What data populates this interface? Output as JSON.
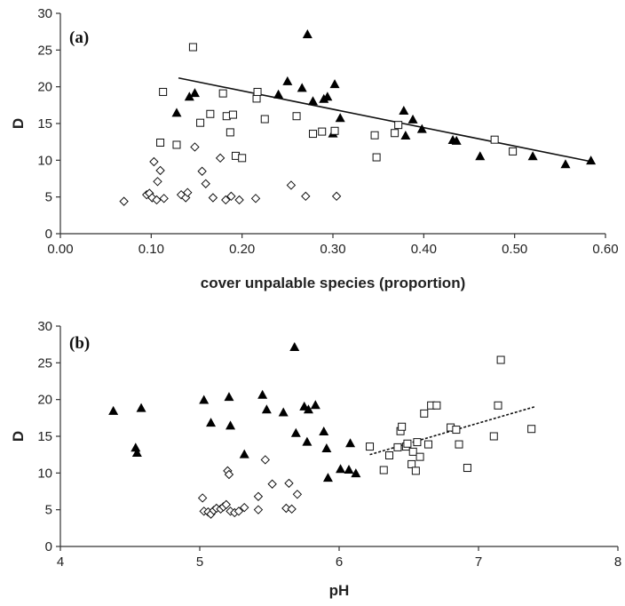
{
  "chart_data": [
    {
      "type": "scatter",
      "panel_label": "(a)",
      "xlabel": "cover unpalable species (proportion)",
      "ylabel": "D",
      "xlim": [
        0,
        0.6
      ],
      "ylim": [
        0,
        30
      ],
      "x_ticks": [
        "0.00",
        "0.10",
        "0.20",
        "0.30",
        "0.40",
        "0.50",
        "0.60"
      ],
      "y_ticks": [
        "0",
        "5",
        "10",
        "15",
        "20",
        "25",
        "30"
      ],
      "grid": false,
      "series": [
        {
          "marker": "filled-triangle",
          "points": [
            [
              0.128,
              16.4
            ],
            [
              0.142,
              18.6
            ],
            [
              0.148,
              19.1
            ],
            [
              0.24,
              18.9
            ],
            [
              0.25,
              20.7
            ],
            [
              0.266,
              19.8
            ],
            [
              0.272,
              27.1
            ],
            [
              0.278,
              18.0
            ],
            [
              0.29,
              18.3
            ],
            [
              0.294,
              18.6
            ],
            [
              0.3,
              13.6
            ],
            [
              0.302,
              20.3
            ],
            [
              0.308,
              15.7
            ],
            [
              0.378,
              16.7
            ],
            [
              0.38,
              13.3
            ],
            [
              0.388,
              15.5
            ],
            [
              0.398,
              14.2
            ],
            [
              0.432,
              12.7
            ],
            [
              0.436,
              12.6
            ],
            [
              0.462,
              10.5
            ],
            [
              0.52,
              10.5
            ],
            [
              0.556,
              9.4
            ],
            [
              0.584,
              9.9
            ]
          ]
        },
        {
          "marker": "open-square",
          "points": [
            [
              0.11,
              12.4
            ],
            [
              0.113,
              19.3
            ],
            [
              0.128,
              12.1
            ],
            [
              0.146,
              25.4
            ],
            [
              0.154,
              15.1
            ],
            [
              0.165,
              16.3
            ],
            [
              0.179,
              19.1
            ],
            [
              0.183,
              16.0
            ],
            [
              0.187,
              13.8
            ],
            [
              0.19,
              16.2
            ],
            [
              0.193,
              10.6
            ],
            [
              0.2,
              10.3
            ],
            [
              0.216,
              18.4
            ],
            [
              0.217,
              19.3
            ],
            [
              0.225,
              15.6
            ],
            [
              0.26,
              16.0
            ],
            [
              0.278,
              13.6
            ],
            [
              0.288,
              13.9
            ],
            [
              0.302,
              14.0
            ],
            [
              0.346,
              13.4
            ],
            [
              0.348,
              10.4
            ],
            [
              0.368,
              13.7
            ],
            [
              0.372,
              14.8
            ],
            [
              0.478,
              12.8
            ],
            [
              0.498,
              11.2
            ]
          ]
        },
        {
          "marker": "open-diamond",
          "points": [
            [
              0.07,
              4.4
            ],
            [
              0.095,
              5.3
            ],
            [
              0.098,
              5.5
            ],
            [
              0.101,
              4.9
            ],
            [
              0.103,
              9.8
            ],
            [
              0.106,
              4.6
            ],
            [
              0.107,
              7.1
            ],
            [
              0.11,
              8.6
            ],
            [
              0.114,
              4.8
            ],
            [
              0.133,
              5.3
            ],
            [
              0.138,
              4.9
            ],
            [
              0.14,
              5.6
            ],
            [
              0.148,
              11.8
            ],
            [
              0.156,
              8.5
            ],
            [
              0.16,
              6.8
            ],
            [
              0.168,
              4.9
            ],
            [
              0.176,
              10.3
            ],
            [
              0.182,
              4.6
            ],
            [
              0.188,
              5.1
            ],
            [
              0.197,
              4.6
            ],
            [
              0.215,
              4.8
            ],
            [
              0.254,
              6.6
            ],
            [
              0.27,
              5.1
            ],
            [
              0.304,
              5.1
            ]
          ]
        }
      ],
      "trendline": {
        "x": [
          0.13,
          0.585
        ],
        "y": [
          21.2,
          9.8
        ],
        "style": "solid"
      }
    },
    {
      "type": "scatter",
      "panel_label": "(b)",
      "xlabel": "pH",
      "ylabel": "D",
      "xlim": [
        4,
        8
      ],
      "ylim": [
        0,
        30
      ],
      "x_ticks": [
        "4",
        "5",
        "6",
        "7",
        "8"
      ],
      "y_ticks": [
        "0",
        "5",
        "10",
        "15",
        "20",
        "25",
        "30"
      ],
      "grid": false,
      "series": [
        {
          "marker": "filled-triangle",
          "points": [
            [
              4.38,
              18.4
            ],
            [
              4.54,
              13.4
            ],
            [
              4.55,
              12.7
            ],
            [
              4.58,
              18.8
            ],
            [
              5.03,
              19.9
            ],
            [
              5.08,
              16.8
            ],
            [
              5.21,
              20.3
            ],
            [
              5.22,
              16.4
            ],
            [
              5.32,
              12.5
            ],
            [
              5.45,
              20.6
            ],
            [
              5.48,
              18.6
            ],
            [
              5.6,
              18.2
            ],
            [
              5.68,
              27.1
            ],
            [
              5.69,
              15.4
            ],
            [
              5.75,
              19.0
            ],
            [
              5.77,
              14.2
            ],
            [
              5.78,
              18.6
            ],
            [
              5.83,
              19.2
            ],
            [
              5.89,
              15.6
            ],
            [
              5.91,
              13.3
            ],
            [
              5.92,
              9.3
            ],
            [
              6.01,
              10.5
            ],
            [
              6.07,
              10.4
            ],
            [
              6.08,
              14.0
            ],
            [
              6.12,
              9.9
            ]
          ]
        },
        {
          "marker": "open-square",
          "points": [
            [
              6.22,
              13.6
            ],
            [
              6.32,
              10.4
            ],
            [
              6.36,
              12.4
            ],
            [
              6.42,
              13.5
            ],
            [
              6.44,
              15.7
            ],
            [
              6.45,
              16.3
            ],
            [
              6.48,
              13.6
            ],
            [
              6.49,
              14.0
            ],
            [
              6.52,
              11.2
            ],
            [
              6.53,
              12.9
            ],
            [
              6.55,
              10.3
            ],
            [
              6.56,
              14.2
            ],
            [
              6.58,
              12.2
            ],
            [
              6.61,
              18.1
            ],
            [
              6.64,
              13.9
            ],
            [
              6.66,
              19.2
            ],
            [
              6.7,
              19.2
            ],
            [
              6.8,
              16.2
            ],
            [
              6.84,
              15.9
            ],
            [
              6.86,
              13.9
            ],
            [
              6.92,
              10.7
            ],
            [
              7.11,
              15.0
            ],
            [
              7.14,
              19.2
            ],
            [
              7.16,
              25.4
            ],
            [
              7.38,
              16.0
            ]
          ]
        },
        {
          "marker": "open-diamond",
          "points": [
            [
              5.02,
              6.6
            ],
            [
              5.03,
              4.8
            ],
            [
              5.06,
              4.7
            ],
            [
              5.08,
              4.4
            ],
            [
              5.1,
              4.9
            ],
            [
              5.12,
              5.2
            ],
            [
              5.15,
              5.1
            ],
            [
              5.17,
              5.4
            ],
            [
              5.19,
              5.7
            ],
            [
              5.2,
              10.3
            ],
            [
              5.21,
              9.8
            ],
            [
              5.22,
              4.8
            ],
            [
              5.25,
              4.6
            ],
            [
              5.28,
              4.8
            ],
            [
              5.32,
              5.3
            ],
            [
              5.42,
              6.8
            ],
            [
              5.42,
              5.0
            ],
            [
              5.47,
              11.8
            ],
            [
              5.52,
              8.5
            ],
            [
              5.62,
              5.2
            ],
            [
              5.64,
              8.6
            ],
            [
              5.66,
              5.1
            ],
            [
              5.7,
              7.1
            ]
          ]
        }
      ],
      "trendline": {
        "x": [
          6.22,
          7.4
        ],
        "y": [
          12.5,
          19.0
        ],
        "style": "dashed"
      }
    }
  ]
}
